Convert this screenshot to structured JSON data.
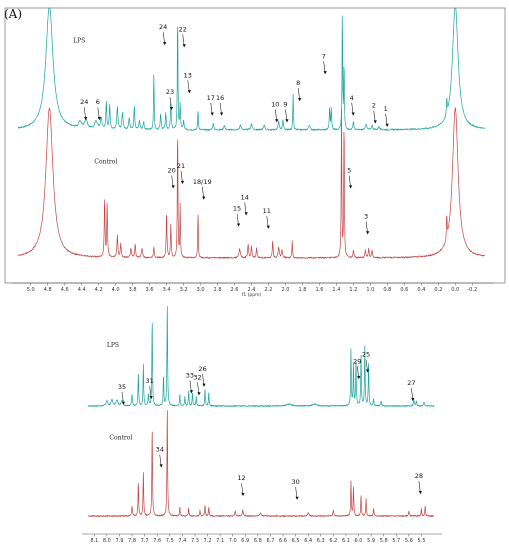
{
  "panel_label": "(A)",
  "chart_data": [
    {
      "type": "line",
      "title": "",
      "xlabel": "f1 (ppm)",
      "x_reversed": true,
      "xlim": [
        5.15,
        -0.35
      ],
      "x_ticks": [
        "5.0",
        "4.8",
        "4.6",
        "4.4",
        "4.2",
        "4.0",
        "3.8",
        "3.6",
        "3.4",
        "3.2",
        "3.0",
        "2.8",
        "2.6",
        "2.4",
        "2.2",
        "2.0",
        "1.8",
        "1.6",
        "1.4",
        "1.2",
        "1.0",
        "0.8",
        "0.6",
        "0.4",
        "0.2",
        "0.0",
        "-0.2"
      ],
      "series": [
        {
          "name": "LPS",
          "color": "#1aa59a",
          "peaks": [
            {
              "x": 4.78,
              "h": 1.0,
              "w": 0.05
            },
            {
              "x": 4.42,
              "h": 0.05,
              "w": 0.02
            },
            {
              "x": 4.35,
              "h": 0.07,
              "w": 0.02
            },
            {
              "x": 4.23,
              "h": 0.06,
              "w": 0.02
            },
            {
              "x": 4.17,
              "h": 0.09,
              "w": 0.01
            },
            {
              "x": 4.11,
              "h": 0.22,
              "w": 0.006
            },
            {
              "x": 4.07,
              "h": 0.19,
              "w": 0.006
            },
            {
              "x": 3.98,
              "h": 0.18,
              "w": 0.008
            },
            {
              "x": 3.92,
              "h": 0.13,
              "w": 0.008
            },
            {
              "x": 3.84,
              "h": 0.09,
              "w": 0.008
            },
            {
              "x": 3.78,
              "h": 0.19,
              "w": 0.006
            },
            {
              "x": 3.72,
              "h": 0.07,
              "w": 0.008
            },
            {
              "x": 3.67,
              "h": 0.06,
              "w": 0.008
            },
            {
              "x": 3.55,
              "h": 0.47,
              "w": 0.004
            },
            {
              "x": 3.47,
              "h": 0.13,
              "w": 0.006
            },
            {
              "x": 3.41,
              "h": 0.13,
              "w": 0.006
            },
            {
              "x": 3.35,
              "h": 0.21,
              "w": 0.006
            },
            {
              "x": 3.27,
              "h": 0.98,
              "w": 0.004
            },
            {
              "x": 3.24,
              "h": 0.2,
              "w": 0.005
            },
            {
              "x": 3.2,
              "h": 0.07,
              "w": 0.006
            },
            {
              "x": 3.03,
              "h": 0.17,
              "w": 0.004
            },
            {
              "x": 2.85,
              "h": 0.05,
              "w": 0.008
            },
            {
              "x": 2.72,
              "h": 0.04,
              "w": 0.008
            },
            {
              "x": 2.53,
              "h": 0.04,
              "w": 0.01
            },
            {
              "x": 2.4,
              "h": 0.05,
              "w": 0.01
            },
            {
              "x": 2.25,
              "h": 0.04,
              "w": 0.01
            },
            {
              "x": 2.08,
              "h": 0.07,
              "w": 0.008
            },
            {
              "x": 2.03,
              "h": 0.08,
              "w": 0.006
            },
            {
              "x": 1.91,
              "h": 0.3,
              "w": 0.004
            },
            {
              "x": 1.72,
              "h": 0.04,
              "w": 0.01
            },
            {
              "x": 1.48,
              "h": 0.17,
              "w": 0.005
            },
            {
              "x": 1.46,
              "h": 0.17,
              "w": 0.005
            },
            {
              "x": 1.33,
              "h": 1.0,
              "w": 0.004
            },
            {
              "x": 1.31,
              "h": 0.55,
              "w": 0.004
            },
            {
              "x": 1.2,
              "h": 0.07,
              "w": 0.006
            },
            {
              "x": 1.05,
              "h": 0.05,
              "w": 0.008
            },
            {
              "x": 0.98,
              "h": 0.04,
              "w": 0.008
            },
            {
              "x": 0.9,
              "h": 0.03,
              "w": 0.008
            },
            {
              "x": 0.1,
              "h": 0.14,
              "w": 0.004
            },
            {
              "x": 0.0,
              "h": 1.0,
              "w": 0.04
            }
          ]
        },
        {
          "name": "Control",
          "color": "#c24545",
          "peaks": [
            {
              "x": 4.78,
              "h": 1.0,
              "w": 0.05
            },
            {
              "x": 4.13,
              "h": 0.4,
              "w": 0.005
            },
            {
              "x": 4.1,
              "h": 0.36,
              "w": 0.005
            },
            {
              "x": 3.98,
              "h": 0.15,
              "w": 0.006
            },
            {
              "x": 3.94,
              "h": 0.09,
              "w": 0.006
            },
            {
              "x": 3.82,
              "h": 0.06,
              "w": 0.008
            },
            {
              "x": 3.77,
              "h": 0.09,
              "w": 0.006
            },
            {
              "x": 3.69,
              "h": 0.06,
              "w": 0.008
            },
            {
              "x": 3.55,
              "h": 0.07,
              "w": 0.006
            },
            {
              "x": 3.4,
              "h": 0.31,
              "w": 0.005
            },
            {
              "x": 3.35,
              "h": 0.22,
              "w": 0.005
            },
            {
              "x": 3.27,
              "h": 0.93,
              "w": 0.004
            },
            {
              "x": 3.24,
              "h": 0.36,
              "w": 0.004
            },
            {
              "x": 3.03,
              "h": 0.32,
              "w": 0.004
            },
            {
              "x": 2.54,
              "h": 0.06,
              "w": 0.01
            },
            {
              "x": 2.44,
              "h": 0.09,
              "w": 0.006
            },
            {
              "x": 2.4,
              "h": 0.08,
              "w": 0.006
            },
            {
              "x": 2.34,
              "h": 0.07,
              "w": 0.006
            },
            {
              "x": 2.15,
              "h": 0.12,
              "w": 0.005
            },
            {
              "x": 2.08,
              "h": 0.07,
              "w": 0.008
            },
            {
              "x": 2.04,
              "h": 0.05,
              "w": 0.008
            },
            {
              "x": 1.92,
              "h": 0.12,
              "w": 0.004
            },
            {
              "x": 1.34,
              "h": 1.0,
              "w": 0.004
            },
            {
              "x": 1.31,
              "h": 0.98,
              "w": 0.004
            },
            {
              "x": 1.2,
              "h": 0.05,
              "w": 0.006
            },
            {
              "x": 1.06,
              "h": 0.05,
              "w": 0.006
            },
            {
              "x": 1.02,
              "h": 0.06,
              "w": 0.006
            },
            {
              "x": 0.98,
              "h": 0.05,
              "w": 0.006
            },
            {
              "x": 0.1,
              "h": 0.17,
              "w": 0.004
            },
            {
              "x": 0.0,
              "h": 1.0,
              "w": 0.04
            }
          ]
        }
      ],
      "annotations": [
        {
          "label": "24",
          "x": 3.44,
          "level": 0.9,
          "arrow": true
        },
        {
          "label": "22",
          "x": 3.21,
          "level": 0.88,
          "arrow": true
        },
        {
          "label": "7",
          "x": 1.55,
          "level": 0.64,
          "arrow": true
        },
        {
          "label": "13",
          "x": 3.15,
          "level": 0.47,
          "arrow": true
        },
        {
          "label": "8",
          "x": 1.85,
          "level": 0.4,
          "arrow": true
        },
        {
          "label": "23",
          "x": 3.36,
          "level": 0.32,
          "arrow": true
        },
        {
          "label": "17",
          "x": 2.88,
          "level": 0.27,
          "arrow": true
        },
        {
          "label": "16",
          "x": 2.77,
          "level": 0.27,
          "arrow": true
        },
        {
          "label": "4",
          "x": 1.22,
          "level": 0.27,
          "arrow": true
        },
        {
          "label": "24",
          "x": 4.37,
          "level": 0.23,
          "arrow": true
        },
        {
          "label": "6",
          "x": 4.21,
          "level": 0.23,
          "arrow": true
        },
        {
          "label": "10",
          "x": 2.12,
          "level": 0.21,
          "arrow": true
        },
        {
          "label": "9",
          "x": 2.0,
          "level": 0.21,
          "arrow": true
        },
        {
          "label": "2",
          "x": 0.96,
          "level": 0.2,
          "arrow": true
        },
        {
          "label": "1",
          "x": 0.82,
          "level": 0.17,
          "arrow": true
        },
        {
          "label": "LPS",
          "x": 4.5,
          "level": 0.78,
          "arrow": false
        },
        {
          "label": "Control",
          "x": 4.25,
          "level": -0.3,
          "arrow": false
        },
        {
          "label": "21",
          "x": 3.23,
          "level": -0.34,
          "arrow": true
        },
        {
          "label": "20",
          "x": 3.34,
          "level": -0.38,
          "arrow": true
        },
        {
          "label": "5",
          "x": 1.25,
          "level": -0.38,
          "arrow": true
        },
        {
          "label": "18/19",
          "x": 2.98,
          "level": -0.48,
          "arrow": true
        },
        {
          "label": "14",
          "x": 2.48,
          "level": -0.62,
          "arrow": true
        },
        {
          "label": "15",
          "x": 2.57,
          "level": -0.72,
          "arrow": true
        },
        {
          "label": "11",
          "x": 2.22,
          "level": -0.74,
          "arrow": true
        },
        {
          "label": "3",
          "x": 1.05,
          "level": -0.79,
          "arrow": true
        }
      ]
    },
    {
      "type": "line",
      "title": "",
      "x_reversed": true,
      "xlim": [
        8.15,
        5.4
      ],
      "x_ticks": [
        "8.1",
        "8.0",
        "7.9",
        "7.8",
        "7.7",
        "7.6",
        "7.5",
        "7.4",
        "7.3",
        "7.2",
        "7.1",
        "7.0",
        "6.9",
        "6.8",
        "6.7",
        "6.6",
        "6.5",
        "6.4",
        "6.3",
        "6.2",
        "6.1",
        "6.0",
        "5.9",
        "5.8",
        "5.7",
        "5.6",
        "5.5"
      ],
      "series": [
        {
          "name": "LPS",
          "color": "#1aa59a",
          "peaks": [
            {
              "x": 8.0,
              "h": 0.05,
              "w": 0.008
            },
            {
              "x": 7.96,
              "h": 0.06,
              "w": 0.008
            },
            {
              "x": 7.92,
              "h": 0.06,
              "w": 0.008
            },
            {
              "x": 7.88,
              "h": 0.05,
              "w": 0.008
            },
            {
              "x": 7.8,
              "h": 0.11,
              "w": 0.004
            },
            {
              "x": 7.75,
              "h": 0.32,
              "w": 0.003
            },
            {
              "x": 7.71,
              "h": 0.4,
              "w": 0.003
            },
            {
              "x": 7.67,
              "h": 0.12,
              "w": 0.003
            },
            {
              "x": 7.64,
              "h": 0.85,
              "w": 0.003
            },
            {
              "x": 7.55,
              "h": 0.3,
              "w": 0.003
            },
            {
              "x": 7.52,
              "h": 1.0,
              "w": 0.003
            },
            {
              "x": 7.42,
              "h": 0.12,
              "w": 0.003
            },
            {
              "x": 7.38,
              "h": 0.09,
              "w": 0.003
            },
            {
              "x": 7.35,
              "h": 0.15,
              "w": 0.003
            },
            {
              "x": 7.32,
              "h": 0.13,
              "w": 0.003
            },
            {
              "x": 7.29,
              "h": 0.09,
              "w": 0.003
            },
            {
              "x": 7.22,
              "h": 0.17,
              "w": 0.003
            },
            {
              "x": 7.19,
              "h": 0.13,
              "w": 0.003
            },
            {
              "x": 6.55,
              "h": 0.02,
              "w": 0.02
            },
            {
              "x": 6.35,
              "h": 0.02,
              "w": 0.02
            },
            {
              "x": 6.06,
              "h": 0.55,
              "w": 0.003
            },
            {
              "x": 6.04,
              "h": 0.4,
              "w": 0.003
            },
            {
              "x": 6.02,
              "h": 0.45,
              "w": 0.003
            },
            {
              "x": 5.98,
              "h": 0.5,
              "w": 0.003
            },
            {
              "x": 5.95,
              "h": 0.58,
              "w": 0.003
            },
            {
              "x": 5.92,
              "h": 0.42,
              "w": 0.003
            },
            {
              "x": 5.88,
              "h": 0.07,
              "w": 0.003
            },
            {
              "x": 5.82,
              "h": 0.05,
              "w": 0.004
            },
            {
              "x": 5.56,
              "h": 0.06,
              "w": 0.004
            },
            {
              "x": 5.54,
              "h": 0.05,
              "w": 0.004
            },
            {
              "x": 5.48,
              "h": 0.04,
              "w": 0.004
            }
          ]
        },
        {
          "name": "Control",
          "color": "#c24545",
          "peaks": [
            {
              "x": 7.8,
              "h": 0.08,
              "w": 0.004
            },
            {
              "x": 7.75,
              "h": 0.3,
              "w": 0.003
            },
            {
              "x": 7.71,
              "h": 0.38,
              "w": 0.003
            },
            {
              "x": 7.64,
              "h": 0.78,
              "w": 0.003
            },
            {
              "x": 7.52,
              "h": 0.95,
              "w": 0.003
            },
            {
              "x": 7.42,
              "h": 0.08,
              "w": 0.003
            },
            {
              "x": 7.35,
              "h": 0.07,
              "w": 0.003
            },
            {
              "x": 7.26,
              "h": 0.05,
              "w": 0.003
            },
            {
              "x": 7.22,
              "h": 0.1,
              "w": 0.003
            },
            {
              "x": 7.19,
              "h": 0.08,
              "w": 0.003
            },
            {
              "x": 6.98,
              "h": 0.04,
              "w": 0.004
            },
            {
              "x": 6.92,
              "h": 0.05,
              "w": 0.004
            },
            {
              "x": 6.78,
              "h": 0.03,
              "w": 0.006
            },
            {
              "x": 6.4,
              "h": 0.03,
              "w": 0.006
            },
            {
              "x": 6.2,
              "h": 0.05,
              "w": 0.004
            },
            {
              "x": 6.06,
              "h": 0.3,
              "w": 0.003
            },
            {
              "x": 6.04,
              "h": 0.25,
              "w": 0.003
            },
            {
              "x": 5.98,
              "h": 0.18,
              "w": 0.003
            },
            {
              "x": 5.94,
              "h": 0.15,
              "w": 0.003
            },
            {
              "x": 5.88,
              "h": 0.07,
              "w": 0.003
            },
            {
              "x": 5.6,
              "h": 0.04,
              "w": 0.004
            },
            {
              "x": 5.5,
              "h": 0.06,
              "w": 0.003
            },
            {
              "x": 5.47,
              "h": 0.09,
              "w": 0.003
            }
          ]
        }
      ],
      "annotations": [
        {
          "label": "25",
          "x": 5.94,
          "level": 0.52,
          "arrow": true
        },
        {
          "label": "29",
          "x": 6.01,
          "level": 0.45,
          "arrow": true
        },
        {
          "label": "26",
          "x": 7.24,
          "level": 0.37,
          "arrow": true
        },
        {
          "label": "33",
          "x": 7.34,
          "level": 0.3,
          "arrow": true
        },
        {
          "label": "32",
          "x": 7.28,
          "level": 0.28,
          "arrow": true
        },
        {
          "label": "31",
          "x": 7.66,
          "level": 0.24,
          "arrow": true
        },
        {
          "label": "27",
          "x": 5.58,
          "level": 0.22,
          "arrow": true
        },
        {
          "label": "35",
          "x": 7.88,
          "level": 0.18,
          "arrow": true
        },
        {
          "label": "LPS",
          "x": 8.0,
          "level": 0.62,
          "arrow": false
        },
        {
          "label": "Control",
          "x": 7.98,
          "level": -0.35,
          "arrow": false
        },
        {
          "label": "34",
          "x": 7.58,
          "level": -0.48,
          "arrow": true
        },
        {
          "label": "12",
          "x": 6.93,
          "level": -0.78,
          "arrow": true
        },
        {
          "label": "30",
          "x": 6.5,
          "level": -0.82,
          "arrow": true
        },
        {
          "label": "28",
          "x": 5.52,
          "level": -0.76,
          "arrow": true
        }
      ]
    }
  ]
}
